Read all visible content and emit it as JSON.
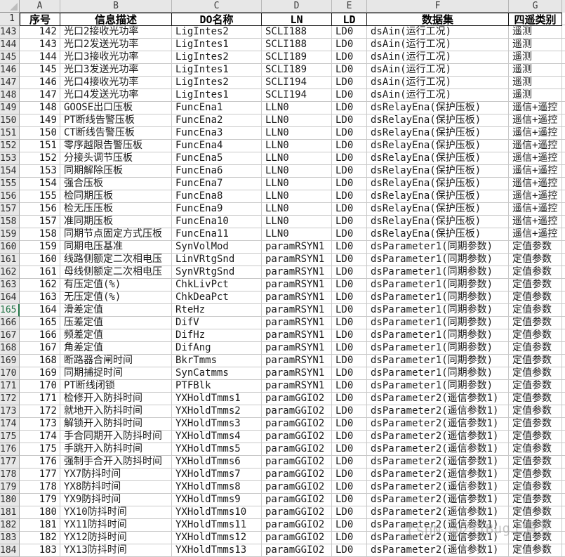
{
  "sheet": {
    "column_letters": [
      "A",
      "B",
      "C",
      "D",
      "E",
      "F",
      "G"
    ],
    "header_row_number": "1",
    "header_labels": [
      "序号",
      "信息描述",
      "DO名称",
      "LN",
      "LD",
      "数据集",
      "四遥类别"
    ],
    "selected_row_header": "165",
    "colors": {
      "selected_row_green": "#1F7244",
      "header_bg": "#E7E7E7",
      "gridline": "#C9C9C9",
      "header_border": "#1D1D1D"
    },
    "table": {
      "rows": [
        {
          "row": "143",
          "cells": [
            "142",
            "光口2接收光功率",
            "LigIntes2",
            "SCLI188",
            "LD0",
            "dsAin(运行工况)",
            "遥测"
          ]
        },
        {
          "row": "144",
          "cells": [
            "143",
            "光口2发送光功率",
            "LigIntes1",
            "SCLI188",
            "LD0",
            "dsAin(运行工况)",
            "遥测"
          ]
        },
        {
          "row": "145",
          "cells": [
            "144",
            "光口3接收光功率",
            "LigIntes2",
            "SCLI189",
            "LD0",
            "dsAin(运行工况)",
            "遥测"
          ]
        },
        {
          "row": "146",
          "cells": [
            "145",
            "光口3发送光功率",
            "LigIntes1",
            "SCLI189",
            "LD0",
            "dsAin(运行工况)",
            "遥测"
          ]
        },
        {
          "row": "147",
          "cells": [
            "146",
            "光口4接收光功率",
            "LigIntes2",
            "SCLI194",
            "LD0",
            "dsAin(运行工况)",
            "遥测"
          ]
        },
        {
          "row": "148",
          "cells": [
            "147",
            "光口4发送光功率",
            "LigIntes1",
            "SCLI194",
            "LD0",
            "dsAin(运行工况)",
            "遥测"
          ]
        },
        {
          "row": "149",
          "cells": [
            "148",
            "GOOSE出口压板",
            "FuncEna1",
            "LLN0",
            "LD0",
            "dsRelayEna(保护压板)",
            "遥信+遥控"
          ]
        },
        {
          "row": "150",
          "cells": [
            "149",
            "PT断线告警压板",
            "FuncEna2",
            "LLN0",
            "LD0",
            "dsRelayEna(保护压板)",
            "遥信+遥控"
          ]
        },
        {
          "row": "151",
          "cells": [
            "150",
            "CT断线告警压板",
            "FuncEna3",
            "LLN0",
            "LD0",
            "dsRelayEna(保护压板)",
            "遥信+遥控"
          ]
        },
        {
          "row": "152",
          "cells": [
            "151",
            "零序越限告警压板",
            "FuncEna4",
            "LLN0",
            "LD0",
            "dsRelayEna(保护压板)",
            "遥信+遥控"
          ]
        },
        {
          "row": "153",
          "cells": [
            "152",
            "分接头调节压板",
            "FuncEna5",
            "LLN0",
            "LD0",
            "dsRelayEna(保护压板)",
            "遥信+遥控"
          ]
        },
        {
          "row": "154",
          "cells": [
            "153",
            "同期解除压板",
            "FuncEna6",
            "LLN0",
            "LD0",
            "dsRelayEna(保护压板)",
            "遥信+遥控"
          ]
        },
        {
          "row": "155",
          "cells": [
            "154",
            "强合压板",
            "FuncEna7",
            "LLN0",
            "LD0",
            "dsRelayEna(保护压板)",
            "遥信+遥控"
          ]
        },
        {
          "row": "156",
          "cells": [
            "155",
            "检同期压板",
            "FuncEna8",
            "LLN0",
            "LD0",
            "dsRelayEna(保护压板)",
            "遥信+遥控"
          ]
        },
        {
          "row": "157",
          "cells": [
            "156",
            "检无压压板",
            "FuncEna9",
            "LLN0",
            "LD0",
            "dsRelayEna(保护压板)",
            "遥信+遥控"
          ]
        },
        {
          "row": "158",
          "cells": [
            "157",
            "准同期压板",
            "FuncEna10",
            "LLN0",
            "LD0",
            "dsRelayEna(保护压板)",
            "遥信+遥控"
          ]
        },
        {
          "row": "159",
          "cells": [
            "158",
            "同期节点固定方式压板",
            "FuncEna11",
            "LLN0",
            "LD0",
            "dsRelayEna(保护压板)",
            "遥信+遥控"
          ]
        },
        {
          "row": "160",
          "cells": [
            "159",
            "同期电压基准",
            "SynVolMod",
            "paramRSYN1",
            "LD0",
            "dsParameter1(同期参数)",
            "定值参数"
          ]
        },
        {
          "row": "161",
          "cells": [
            "160",
            "线路侧额定二次相电压",
            "LinVRtgSnd",
            "paramRSYN1",
            "LD0",
            "dsParameter1(同期参数)",
            "定值参数"
          ]
        },
        {
          "row": "162",
          "cells": [
            "161",
            "母线侧额定二次相电压",
            "SynVRtgSnd",
            "paramRSYN1",
            "LD0",
            "dsParameter1(同期参数)",
            "定值参数"
          ]
        },
        {
          "row": "163",
          "cells": [
            "162",
            "有压定值(%)",
            "ChkLivPct",
            "paramRSYN1",
            "LD0",
            "dsParameter1(同期参数)",
            "定值参数"
          ]
        },
        {
          "row": "164",
          "cells": [
            "163",
            "无压定值(%)",
            "ChkDeaPct",
            "paramRSYN1",
            "LD0",
            "dsParameter1(同期参数)",
            "定值参数"
          ]
        },
        {
          "row": "165",
          "cells": [
            "164",
            "滑差定值",
            "RteHz",
            "paramRSYN1",
            "LD0",
            "dsParameter1(同期参数)",
            "定值参数"
          ]
        },
        {
          "row": "166",
          "cells": [
            "165",
            "压差定值",
            "DifV",
            "paramRSYN1",
            "LD0",
            "dsParameter1(同期参数)",
            "定值参数"
          ]
        },
        {
          "row": "167",
          "cells": [
            "166",
            "频差定值",
            "DifHz",
            "paramRSYN1",
            "LD0",
            "dsParameter1(同期参数)",
            "定值参数"
          ]
        },
        {
          "row": "168",
          "cells": [
            "167",
            "角差定值",
            "DifAng",
            "paramRSYN1",
            "LD0",
            "dsParameter1(同期参数)",
            "定值参数"
          ]
        },
        {
          "row": "169",
          "cells": [
            "168",
            "断路器合闸时间",
            "BkrTmms",
            "paramRSYN1",
            "LD0",
            "dsParameter1(同期参数)",
            "定值参数"
          ]
        },
        {
          "row": "170",
          "cells": [
            "169",
            "同期捕捉时间",
            "SynCatmms",
            "paramRSYN1",
            "LD0",
            "dsParameter1(同期参数)",
            "定值参数"
          ]
        },
        {
          "row": "171",
          "cells": [
            "170",
            "PT断线闭锁",
            "PTFBlk",
            "paramRSYN1",
            "LD0",
            "dsParameter1(同期参数)",
            "定值参数"
          ]
        },
        {
          "row": "172",
          "cells": [
            "171",
            "检修开入防抖时间",
            "YXHoldTmms1",
            "paramGGIO2",
            "LD0",
            "dsParameter2(遥信参数1)",
            "定值参数"
          ]
        },
        {
          "row": "173",
          "cells": [
            "172",
            "就地开入防抖时间",
            "YXHoldTmms2",
            "paramGGIO2",
            "LD0",
            "dsParameter2(遥信参数1)",
            "定值参数"
          ]
        },
        {
          "row": "174",
          "cells": [
            "173",
            "解锁开入防抖时间",
            "YXHoldTmms3",
            "paramGGIO2",
            "LD0",
            "dsParameter2(遥信参数1)",
            "定值参数"
          ]
        },
        {
          "row": "175",
          "cells": [
            "174",
            "手合同期开入防抖时间",
            "YXHoldTmms4",
            "paramGGIO2",
            "LD0",
            "dsParameter2(遥信参数1)",
            "定值参数"
          ]
        },
        {
          "row": "176",
          "cells": [
            "175",
            "手跳开入防抖时间",
            "YXHoldTmms5",
            "paramGGIO2",
            "LD0",
            "dsParameter2(遥信参数1)",
            "定值参数"
          ]
        },
        {
          "row": "177",
          "cells": [
            "176",
            "强制手合开入防抖时间",
            "YXHoldTmms6",
            "paramGGIO2",
            "LD0",
            "dsParameter2(遥信参数1)",
            "定值参数"
          ]
        },
        {
          "row": "178",
          "cells": [
            "177",
            "YX7防抖时间",
            "YXHoldTmms7",
            "paramGGIO2",
            "LD0",
            "dsParameter2(遥信参数1)",
            "定值参数"
          ]
        },
        {
          "row": "179",
          "cells": [
            "178",
            "YX8防抖时间",
            "YXHoldTmms8",
            "paramGGIO2",
            "LD0",
            "dsParameter2(遥信参数1)",
            "定值参数"
          ]
        },
        {
          "row": "180",
          "cells": [
            "179",
            "YX9防抖时间",
            "YXHoldTmms9",
            "paramGGIO2",
            "LD0",
            "dsParameter2(遥信参数1)",
            "定值参数"
          ]
        },
        {
          "row": "181",
          "cells": [
            "180",
            "YX10防抖时间",
            "YXHoldTmms10",
            "paramGGIO2",
            "LD0",
            "dsParameter2(遥信参数1)",
            "定值参数"
          ]
        },
        {
          "row": "182",
          "cells": [
            "181",
            "YX11防抖时间",
            "YXHoldTmms11",
            "paramGGIO2",
            "LD0",
            "dsParameter2(遥信参数1)",
            "定值参数"
          ]
        },
        {
          "row": "183",
          "cells": [
            "182",
            "YX12防抖时间",
            "YXHoldTmms12",
            "paramGGIO2",
            "LD0",
            "dsParameter2(遥信参数1)",
            "定值参数"
          ]
        },
        {
          "row": "184",
          "cells": [
            "183",
            "YX13防抖时间",
            "YXHoldTmms13",
            "paramGGIO2",
            "LD0",
            "dsParameter2(遥信参数1)",
            "定值参数"
          ]
        }
      ]
    }
  },
  "watermark": "CSDN @亿行Bug上青天"
}
